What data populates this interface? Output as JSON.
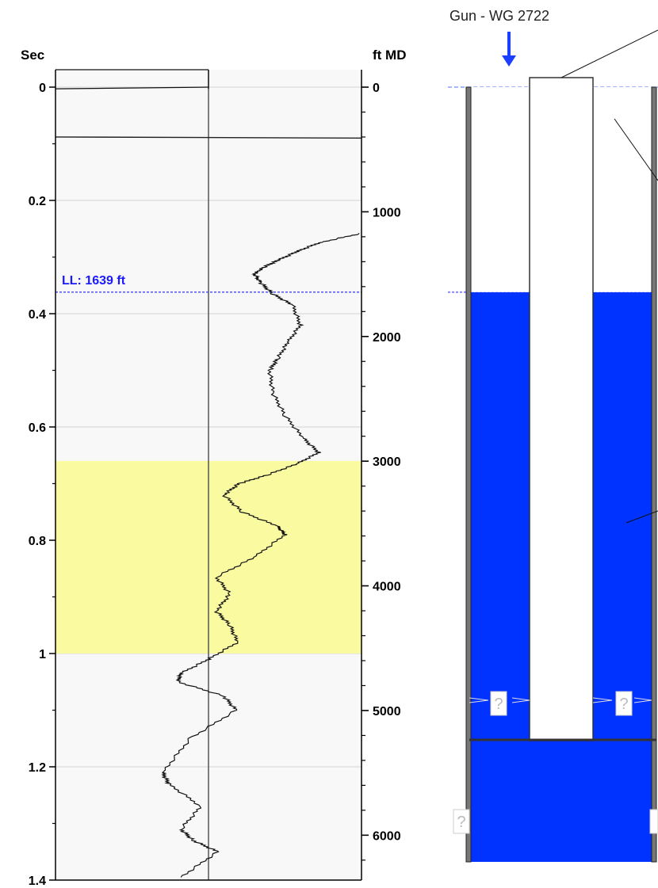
{
  "chart_data": {
    "type": "line",
    "title": "",
    "left_axis": {
      "label": "Sec",
      "min": 0,
      "max": 1.4,
      "ticks": [
        0,
        0.2,
        0.4,
        0.6,
        0.8,
        1,
        1.2,
        1.4
      ],
      "tick_labels": [
        "0",
        "0.2",
        "0.4",
        "0.6",
        "0.8",
        "1",
        "1.2",
        "1.4"
      ]
    },
    "right_axis": {
      "label": "ft MD",
      "min": 0,
      "max": 6360,
      "ticks": [
        0,
        1000,
        2000,
        3000,
        4000,
        5000,
        6000
      ],
      "tick_labels": [
        "0",
        "1000",
        "2000",
        "3000",
        "4000",
        "5000",
        "6000"
      ],
      "minor_step": 200
    },
    "grid": true,
    "liquid_level": {
      "label": "LL: 1639 ft",
      "time_s": 0.362,
      "depth_ft": 1639,
      "color": "#1a1aff"
    },
    "highlight_band": {
      "from_s": 0.66,
      "to_s": 1.0,
      "color": "#fafaa0"
    },
    "center_line_amplitude": 0,
    "amplitude_range": [
      -1,
      1
    ],
    "series": [
      {
        "values": [
          [
            0,
            0
          ],
          [
            0.003,
            0
          ]
        ],
        "first_segment": [
          [
            -1,
            0.003
          ],
          [
            0,
            0
          ]
        ],
        "reflection_line": [
          [
            -1,
            0.088
          ],
          [
            1,
            0.09
          ]
        ],
        "trace": [
          [
            1,
            0.258
          ],
          [
            0.72,
            0.275
          ],
          [
            0.58,
            0.29
          ],
          [
            0.46,
            0.305
          ],
          [
            0.36,
            0.318
          ],
          [
            0.3,
            0.33
          ],
          [
            0.34,
            0.345
          ],
          [
            0.42,
            0.365
          ],
          [
            0.55,
            0.385
          ],
          [
            0.6,
            0.42
          ],
          [
            0.52,
            0.45
          ],
          [
            0.45,
            0.48
          ],
          [
            0.4,
            0.5
          ],
          [
            0.42,
            0.54
          ],
          [
            0.5,
            0.58
          ],
          [
            0.62,
            0.62
          ],
          [
            0.72,
            0.645
          ],
          [
            0.58,
            0.665
          ],
          [
            0.38,
            0.685
          ],
          [
            0.2,
            0.7
          ],
          [
            0.1,
            0.72
          ],
          [
            0.22,
            0.75
          ],
          [
            0.45,
            0.775
          ],
          [
            0.5,
            0.79
          ],
          [
            0.3,
            0.83
          ],
          [
            0.05,
            0.865
          ],
          [
            0.14,
            0.895
          ],
          [
            0.05,
            0.925
          ],
          [
            0.14,
            0.95
          ],
          [
            0.19,
            0.98
          ],
          [
            0.0,
            1.01
          ],
          [
            -0.18,
            1.035
          ],
          [
            -0.2,
            1.05
          ],
          [
            0.1,
            1.075
          ],
          [
            0.18,
            1.1
          ],
          [
            -0.12,
            1.15
          ],
          [
            -0.3,
            1.21
          ],
          [
            -0.26,
            1.23
          ],
          [
            -0.05,
            1.27
          ],
          [
            -0.18,
            1.31
          ],
          [
            -0.1,
            1.33
          ],
          [
            0.06,
            1.35
          ],
          [
            -0.18,
            1.395
          ]
        ]
      }
    ]
  },
  "wellbore": {
    "gun_label": "Gun - WG 2722",
    "arrow_color": "#1a3fff",
    "fluid_color": "#0033ff",
    "unknown_marker": "?"
  }
}
